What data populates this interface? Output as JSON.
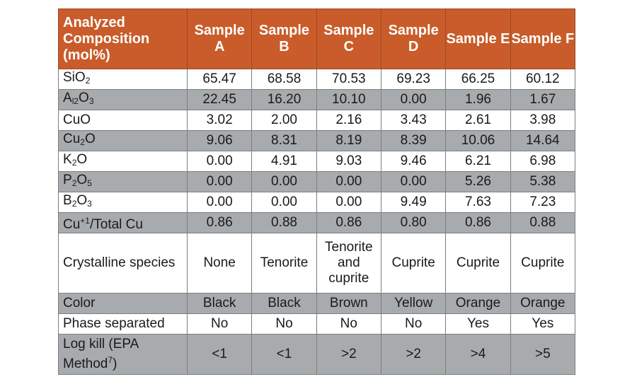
{
  "table": {
    "corner_header": "Analyzed Composition (mol%)",
    "sample_headers": [
      "Sample A",
      "Sample B",
      "Sample C",
      "Sample D",
      "Sample E",
      "Sample F"
    ],
    "rows": [
      {
        "label_html": "SiO<sub>2</sub>",
        "label_text": "SiO2",
        "values": [
          "65.47",
          "68.58",
          "70.53",
          "69.23",
          "66.25",
          "60.12"
        ]
      },
      {
        "label_html": "A<sub>l2</sub>O<sub>3</sub>",
        "label_text": "Al2O3",
        "values": [
          "22.45",
          "16.20",
          "10.10",
          "0.00",
          "1.96",
          "1.67"
        ]
      },
      {
        "label_html": "CuO",
        "label_text": "CuO",
        "values": [
          "3.02",
          "2.00",
          "2.16",
          "3.43",
          "2.61",
          "3.98"
        ]
      },
      {
        "label_html": "Cu<sub>2</sub>O",
        "label_text": "Cu2O",
        "values": [
          "9.06",
          "8.31",
          "8.19",
          "8.39",
          "10.06",
          "14.64"
        ]
      },
      {
        "label_html": "K<sub>2</sub>O",
        "label_text": "K2O",
        "values": [
          "0.00",
          "4.91",
          "9.03",
          "9.46",
          "6.21",
          "6.98"
        ]
      },
      {
        "label_html": "P<sub>2</sub>O<sub>5</sub>",
        "label_text": "P2O5",
        "values": [
          "0.00",
          "0.00",
          "0.00",
          "0.00",
          "5.26",
          "5.38"
        ]
      },
      {
        "label_html": "B<sub>2</sub>O<sub>3</sub>",
        "label_text": "B2O3",
        "values": [
          "0.00",
          "0.00",
          "0.00",
          "9.49",
          "7.63",
          "7.23"
        ]
      },
      {
        "label_html": "Cu<sup>+1</sup>/Total Cu",
        "label_text": "Cu+1/Total Cu",
        "values": [
          "0.86",
          "0.88",
          "0.86",
          "0.80",
          "0.86",
          "0.88"
        ]
      },
      {
        "label_html": "Crystalline species",
        "label_text": "Crystalline species",
        "values": [
          "None",
          "Tenorite",
          "Tenorite and cuprite",
          "Cuprite",
          "Cuprite",
          "Cuprite"
        ]
      },
      {
        "label_html": "Color",
        "label_text": "Color",
        "values": [
          "Black",
          "Black",
          "Brown",
          "Yellow",
          "Orange",
          "Orange"
        ]
      },
      {
        "label_html": "Phase separated",
        "label_text": "Phase separated",
        "values": [
          "No",
          "No",
          "No",
          "No",
          "Yes",
          "Yes"
        ]
      },
      {
        "label_html": "Log kill (EPA Method<sup>7</sup>)",
        "label_text": "Log kill (EPA Method7)",
        "values": [
          "<1",
          "<1",
          ">2",
          ">2",
          ">4",
          ">5"
        ]
      }
    ]
  },
  "colors": {
    "header_bg": "#c95c2a",
    "shaded_row_bg": "#a8abae",
    "border": "#7d7d7d"
  }
}
